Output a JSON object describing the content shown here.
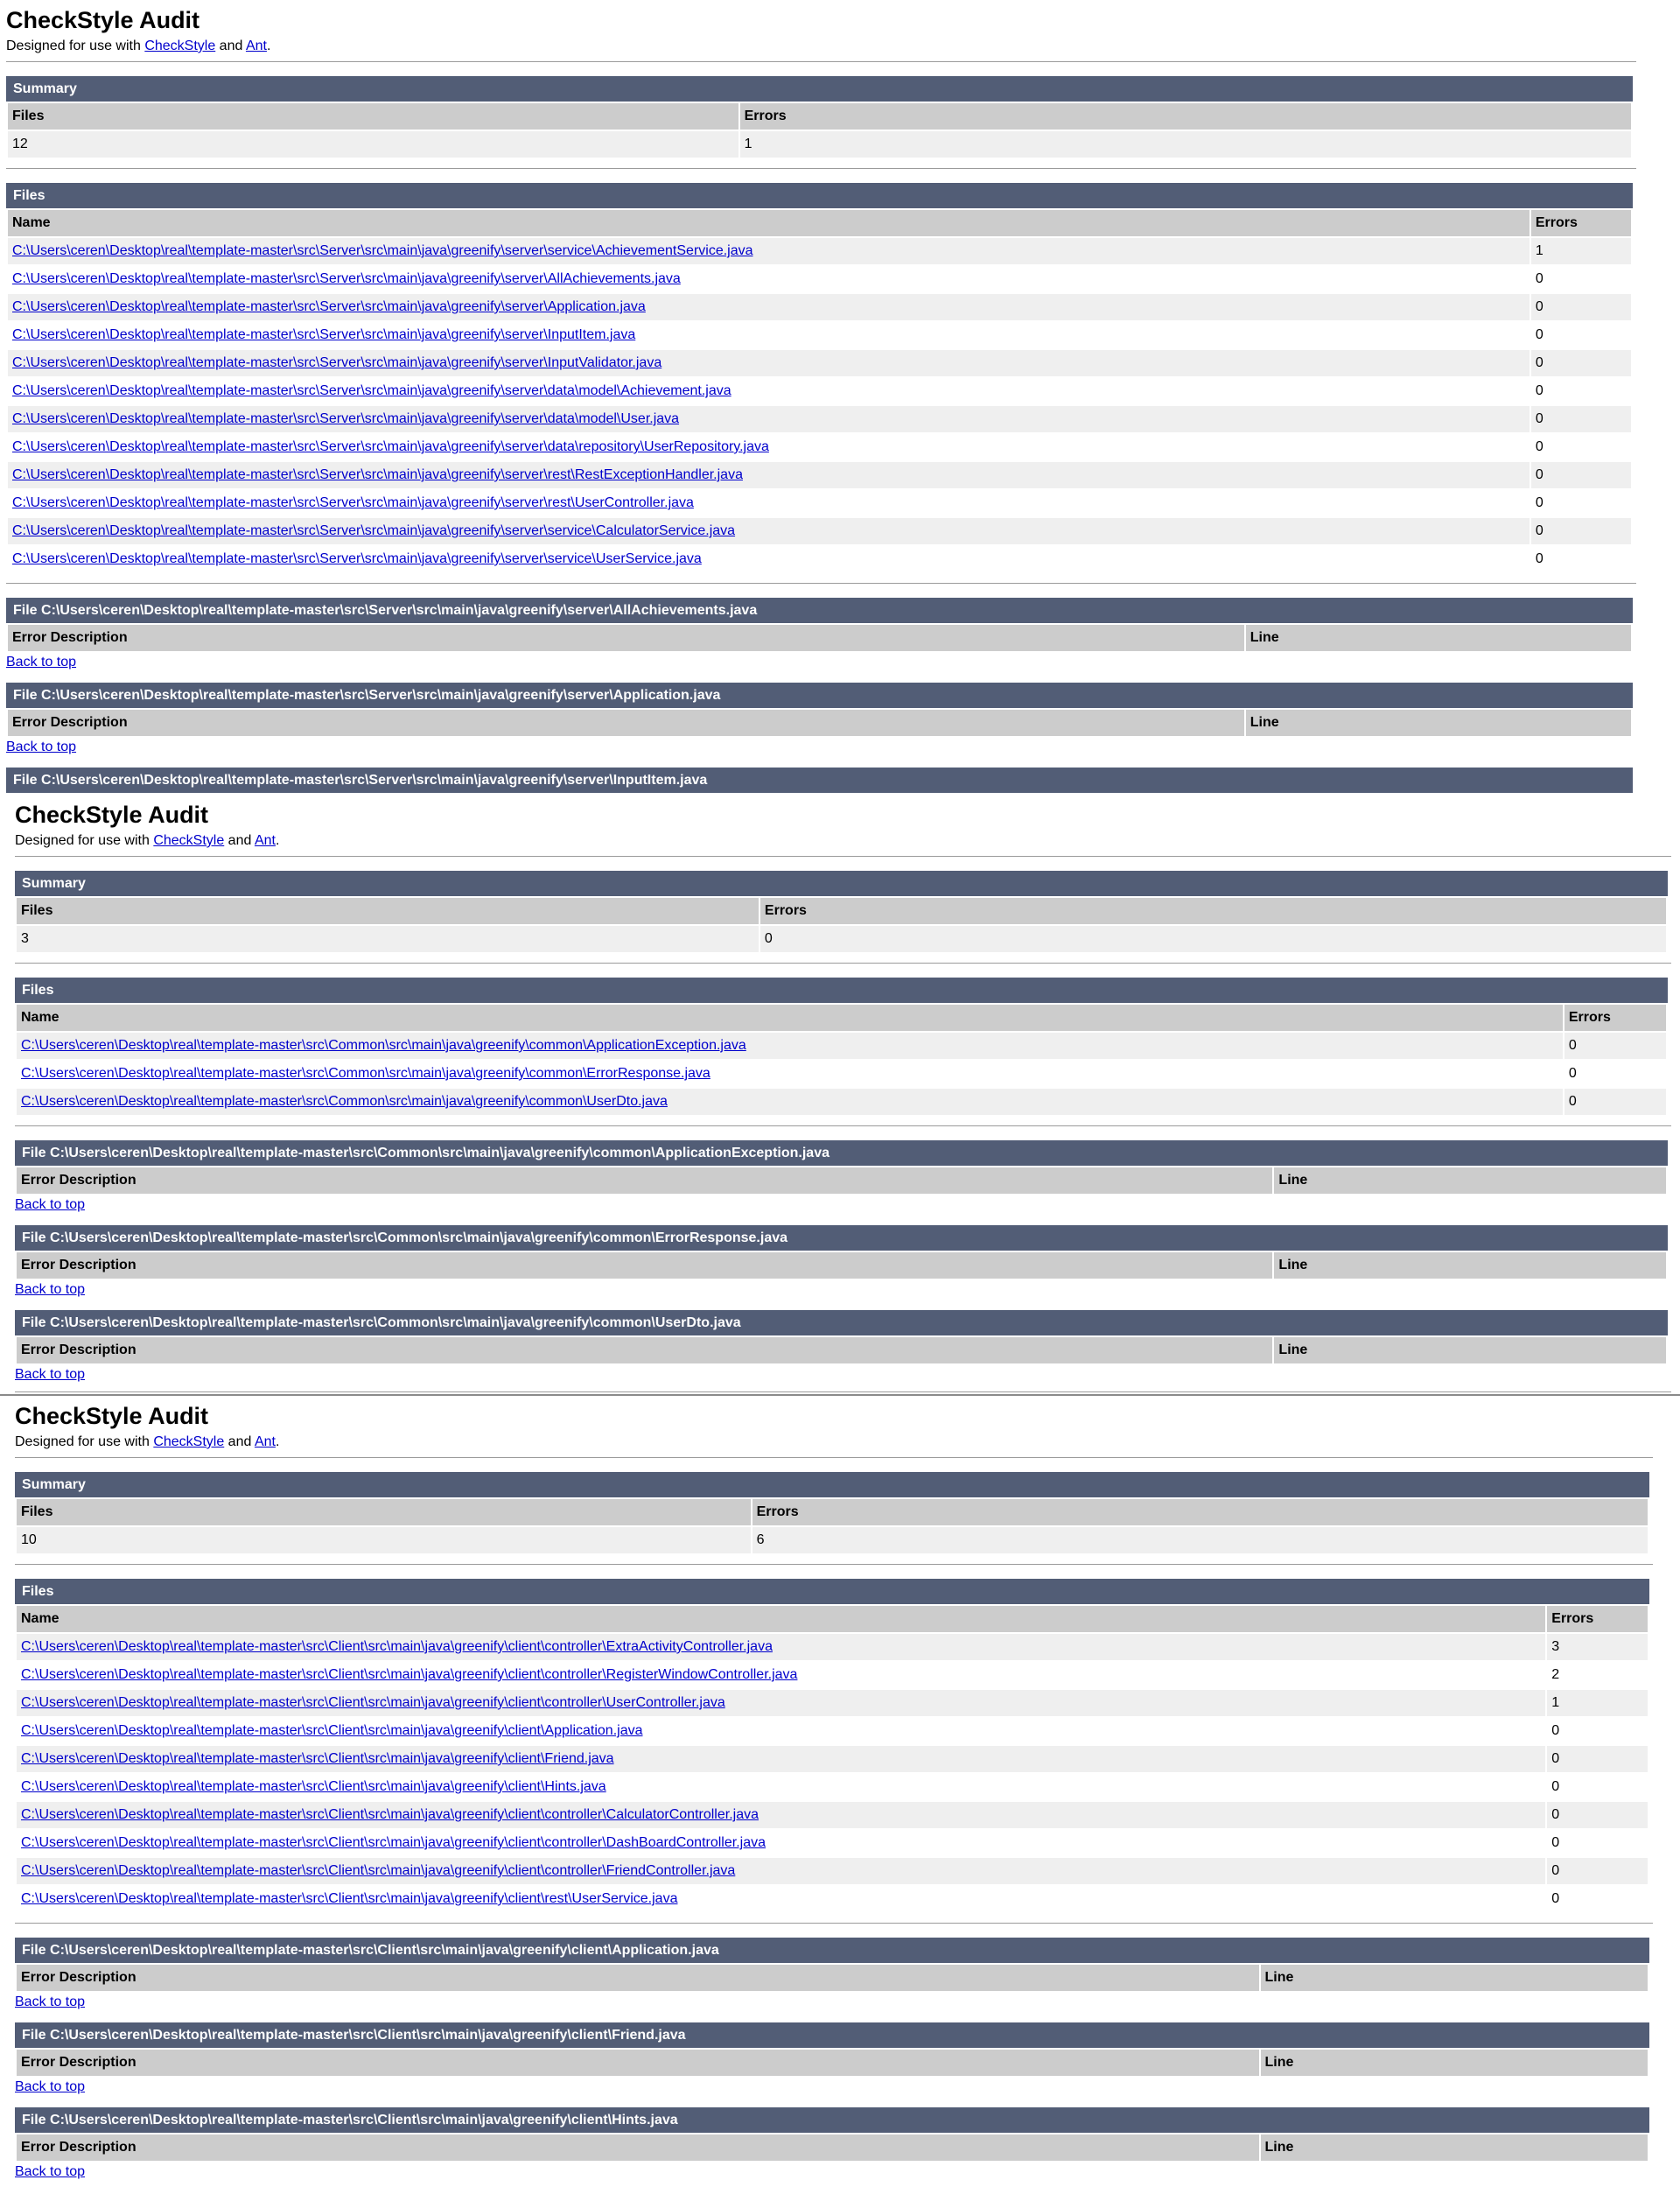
{
  "labels": {
    "page_title": "CheckStyle Audit",
    "intro_prefix": "Designed for use with ",
    "intro_link_checkstyle": "CheckStyle",
    "intro_and": " and ",
    "intro_link_ant": "Ant",
    "intro_period": ".",
    "summary_title": "Summary",
    "files_title": "Files",
    "col_files": "Files",
    "col_errors": "Errors",
    "col_name": "Name",
    "col_error_description": "Error Description",
    "col_line": "Line",
    "file_prefix": "File ",
    "back_to_top": "Back to top"
  },
  "colors": {
    "header_bar": "#525D76",
    "table_header": "#CCCCCC",
    "row_alternate": "#EFEFEF",
    "link": "#0000CC"
  },
  "reports": [
    {
      "summary": {
        "files": "12",
        "errors": "1"
      },
      "files": [
        {
          "name": "C:\\Users\\ceren\\Desktop\\real\\template-master\\src\\Server\\src\\main\\java\\greenify\\server\\service\\AchievementService.java",
          "errors": "1"
        },
        {
          "name": "C:\\Users\\ceren\\Desktop\\real\\template-master\\src\\Server\\src\\main\\java\\greenify\\server\\AllAchievements.java",
          "errors": "0"
        },
        {
          "name": "C:\\Users\\ceren\\Desktop\\real\\template-master\\src\\Server\\src\\main\\java\\greenify\\server\\Application.java",
          "errors": "0"
        },
        {
          "name": "C:\\Users\\ceren\\Desktop\\real\\template-master\\src\\Server\\src\\main\\java\\greenify\\server\\InputItem.java",
          "errors": "0"
        },
        {
          "name": "C:\\Users\\ceren\\Desktop\\real\\template-master\\src\\Server\\src\\main\\java\\greenify\\server\\InputValidator.java",
          "errors": "0"
        },
        {
          "name": "C:\\Users\\ceren\\Desktop\\real\\template-master\\src\\Server\\src\\main\\java\\greenify\\server\\data\\model\\Achievement.java",
          "errors": "0"
        },
        {
          "name": "C:\\Users\\ceren\\Desktop\\real\\template-master\\src\\Server\\src\\main\\java\\greenify\\server\\data\\model\\User.java",
          "errors": "0"
        },
        {
          "name": "C:\\Users\\ceren\\Desktop\\real\\template-master\\src\\Server\\src\\main\\java\\greenify\\server\\data\\repository\\UserRepository.java",
          "errors": "0"
        },
        {
          "name": "C:\\Users\\ceren\\Desktop\\real\\template-master\\src\\Server\\src\\main\\java\\greenify\\server\\rest\\RestExceptionHandler.java",
          "errors": "0"
        },
        {
          "name": "C:\\Users\\ceren\\Desktop\\real\\template-master\\src\\Server\\src\\main\\java\\greenify\\server\\rest\\UserController.java",
          "errors": "0"
        },
        {
          "name": "C:\\Users\\ceren\\Desktop\\real\\template-master\\src\\Server\\src\\main\\java\\greenify\\server\\service\\CalculatorService.java",
          "errors": "0"
        },
        {
          "name": "C:\\Users\\ceren\\Desktop\\real\\template-master\\src\\Server\\src\\main\\java\\greenify\\server\\service\\UserService.java",
          "errors": "0"
        }
      ],
      "sections": [
        {
          "path": "C:\\Users\\ceren\\Desktop\\real\\template-master\\src\\Server\\src\\main\\java\\greenify\\server\\AllAchievements.java"
        },
        {
          "path": "C:\\Users\\ceren\\Desktop\\real\\template-master\\src\\Server\\src\\main\\java\\greenify\\server\\Application.java"
        },
        {
          "path": "C:\\Users\\ceren\\Desktop\\real\\template-master\\src\\Server\\src\\main\\java\\greenify\\server\\InputItem.java"
        }
      ]
    },
    {
      "summary": {
        "files": "3",
        "errors": "0"
      },
      "files": [
        {
          "name": "C:\\Users\\ceren\\Desktop\\real\\template-master\\src\\Common\\src\\main\\java\\greenify\\common\\ApplicationException.java",
          "errors": "0"
        },
        {
          "name": "C:\\Users\\ceren\\Desktop\\real\\template-master\\src\\Common\\src\\main\\java\\greenify\\common\\ErrorResponse.java",
          "errors": "0"
        },
        {
          "name": "C:\\Users\\ceren\\Desktop\\real\\template-master\\src\\Common\\src\\main\\java\\greenify\\common\\UserDto.java",
          "errors": "0"
        }
      ],
      "sections": [
        {
          "path": "C:\\Users\\ceren\\Desktop\\real\\template-master\\src\\Common\\src\\main\\java\\greenify\\common\\ApplicationException.java"
        },
        {
          "path": "C:\\Users\\ceren\\Desktop\\real\\template-master\\src\\Common\\src\\main\\java\\greenify\\common\\ErrorResponse.java"
        },
        {
          "path": "C:\\Users\\ceren\\Desktop\\real\\template-master\\src\\Common\\src\\main\\java\\greenify\\common\\UserDto.java"
        }
      ]
    },
    {
      "summary": {
        "files": "10",
        "errors": "6"
      },
      "files": [
        {
          "name": "C:\\Users\\ceren\\Desktop\\real\\template-master\\src\\Client\\src\\main\\java\\greenify\\client\\controller\\ExtraActivityController.java",
          "errors": "3"
        },
        {
          "name": "C:\\Users\\ceren\\Desktop\\real\\template-master\\src\\Client\\src\\main\\java\\greenify\\client\\controller\\RegisterWindowController.java",
          "errors": "2"
        },
        {
          "name": "C:\\Users\\ceren\\Desktop\\real\\template-master\\src\\Client\\src\\main\\java\\greenify\\client\\controller\\UserController.java",
          "errors": "1"
        },
        {
          "name": "C:\\Users\\ceren\\Desktop\\real\\template-master\\src\\Client\\src\\main\\java\\greenify\\client\\Application.java",
          "errors": "0"
        },
        {
          "name": "C:\\Users\\ceren\\Desktop\\real\\template-master\\src\\Client\\src\\main\\java\\greenify\\client\\Friend.java",
          "errors": "0"
        },
        {
          "name": "C:\\Users\\ceren\\Desktop\\real\\template-master\\src\\Client\\src\\main\\java\\greenify\\client\\Hints.java",
          "errors": "0"
        },
        {
          "name": "C:\\Users\\ceren\\Desktop\\real\\template-master\\src\\Client\\src\\main\\java\\greenify\\client\\controller\\CalculatorController.java",
          "errors": "0"
        },
        {
          "name": "C:\\Users\\ceren\\Desktop\\real\\template-master\\src\\Client\\src\\main\\java\\greenify\\client\\controller\\DashBoardController.java",
          "errors": "0"
        },
        {
          "name": "C:\\Users\\ceren\\Desktop\\real\\template-master\\src\\Client\\src\\main\\java\\greenify\\client\\controller\\FriendController.java",
          "errors": "0"
        },
        {
          "name": "C:\\Users\\ceren\\Desktop\\real\\template-master\\src\\Client\\src\\main\\java\\greenify\\client\\rest\\UserService.java",
          "errors": "0"
        }
      ],
      "sections": [
        {
          "path": "C:\\Users\\ceren\\Desktop\\real\\template-master\\src\\Client\\src\\main\\java\\greenify\\client\\Application.java"
        },
        {
          "path": "C:\\Users\\ceren\\Desktop\\real\\template-master\\src\\Client\\src\\main\\java\\greenify\\client\\Friend.java"
        },
        {
          "path": "C:\\Users\\ceren\\Desktop\\real\\template-master\\src\\Client\\src\\main\\java\\greenify\\client\\Hints.java"
        }
      ]
    }
  ]
}
